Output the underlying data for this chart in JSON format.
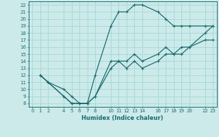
{
  "xlabel": "Humidex (Indice chaleur)",
  "bg_color": "#cceaea",
  "line_color": "#1a6b6b",
  "grid_color": "#a8d8d8",
  "xlim": [
    -0.5,
    23.5
  ],
  "ylim": [
    7.5,
    22.5
  ],
  "xticks": [
    0,
    1,
    2,
    4,
    5,
    6,
    7,
    8,
    10,
    11,
    12,
    13,
    14,
    16,
    17,
    18,
    19,
    20,
    22,
    23
  ],
  "yticks": [
    8,
    9,
    10,
    11,
    12,
    13,
    14,
    15,
    16,
    17,
    18,
    19,
    20,
    21,
    22
  ],
  "line1_x": [
    1,
    2,
    4,
    5,
    6,
    7,
    8,
    10,
    11,
    12,
    13,
    14,
    16,
    17,
    18,
    19,
    20,
    22,
    23
  ],
  "line1_y": [
    12,
    11,
    9,
    8,
    8,
    8,
    9,
    13,
    14,
    13,
    14,
    13,
    14,
    15,
    15,
    15,
    16,
    17,
    17
  ],
  "line2_x": [
    1,
    2,
    4,
    5,
    6,
    7,
    8,
    10,
    11,
    12,
    13,
    14,
    16,
    17,
    18,
    19,
    20,
    22,
    23
  ],
  "line2_y": [
    12,
    11,
    10,
    9,
    8,
    8,
    12,
    19,
    21,
    21,
    22,
    22,
    21,
    20,
    19,
    19,
    19,
    19,
    19
  ],
  "line3_x": [
    1,
    2,
    4,
    5,
    6,
    7,
    8,
    10,
    11,
    12,
    13,
    14,
    16,
    17,
    18,
    19,
    20,
    22,
    23
  ],
  "line3_y": [
    12,
    11,
    9,
    8,
    8,
    8,
    9,
    14,
    14,
    14,
    15,
    14,
    15,
    16,
    15,
    16,
    16,
    18,
    19
  ]
}
